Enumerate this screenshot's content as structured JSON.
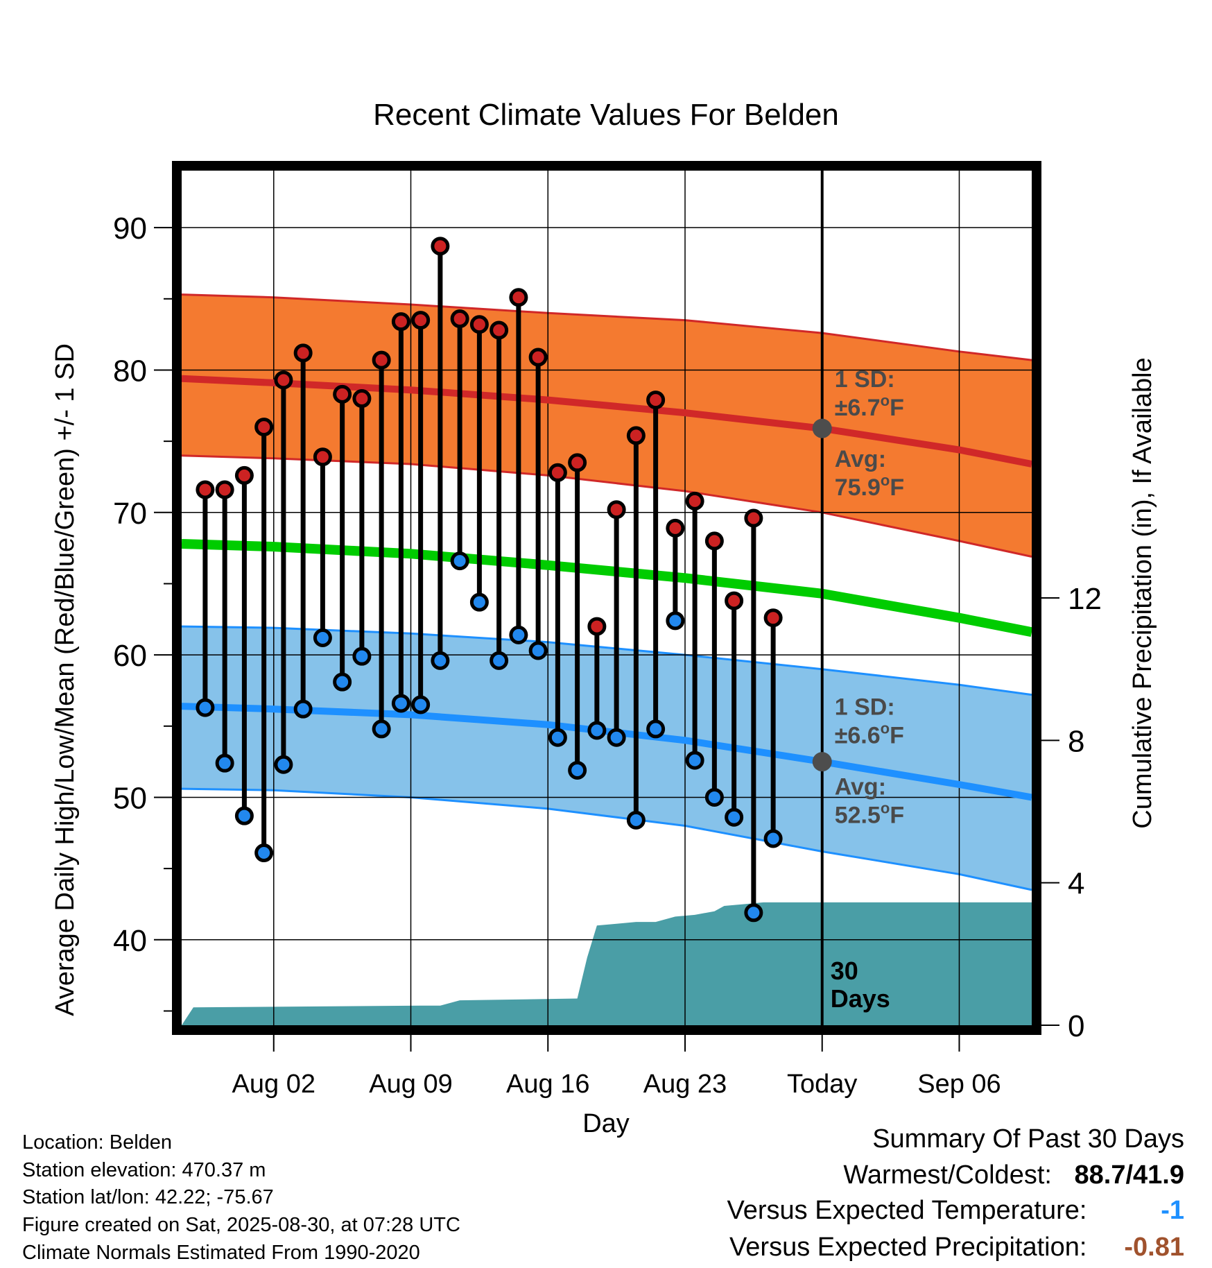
{
  "chart_data": {
    "type": "line",
    "title": "Recent Climate Values For Belden",
    "xlabel": "Day",
    "ylabel": "Average Daily High/Low/Mean (Red/Blue/Green) +/- 1 SD",
    "y2label": "Cumulative Precipitation (in), If Available",
    "ylim": [
      34,
      94
    ],
    "y2lim": [
      0,
      24
    ],
    "xlim": [
      -2.7,
      40.7
    ],
    "x_ticks": [
      {
        "day": 2,
        "label": "Aug 02"
      },
      {
        "day": 9,
        "label": "Aug 09"
      },
      {
        "day": 16,
        "label": "Aug 16"
      },
      {
        "day": 23,
        "label": "Aug 23"
      },
      {
        "day": 30,
        "label": "Today"
      },
      {
        "day": 37,
        "label": "Sep 06"
      }
    ],
    "y_ticks": [
      40,
      50,
      60,
      70,
      80,
      90
    ],
    "y2_ticks": [
      0,
      4,
      8,
      12
    ],
    "grid": true,
    "today_day": 30,
    "today_label_1": "30",
    "today_label_2": "Days",
    "normals": {
      "days": [
        -2.7,
        2,
        9,
        16,
        23,
        30,
        37,
        40.7
      ],
      "high_avg": [
        79.4,
        79.1,
        78.6,
        77.9,
        77.0,
        75.9,
        74.4,
        73.4
      ],
      "high_sd_upper": [
        85.3,
        85.1,
        84.6,
        84.0,
        83.5,
        82.6,
        81.3,
        80.7
      ],
      "high_sd_lower": [
        74.0,
        73.8,
        73.4,
        72.6,
        71.5,
        70.0,
        68.0,
        66.9
      ],
      "mean": [
        67.8,
        67.6,
        67.1,
        66.3,
        65.4,
        64.3,
        62.6,
        61.6
      ],
      "low_avg": [
        56.4,
        56.2,
        55.8,
        55.1,
        54.0,
        52.5,
        50.9,
        50.0
      ],
      "low_sd_upper": [
        62.0,
        61.9,
        61.5,
        60.9,
        60.0,
        59.0,
        57.9,
        57.2
      ],
      "low_sd_lower": [
        50.6,
        50.5,
        50.0,
        49.2,
        48.0,
        46.2,
        44.6,
        43.5
      ]
    },
    "series": [
      {
        "name": "High",
        "color": "#cc2222",
        "values": [
          71.6,
          71.6,
          72.6,
          76.0,
          79.3,
          81.2,
          73.9,
          78.3,
          78.0,
          80.7,
          83.4,
          83.5,
          88.7,
          83.6,
          83.2,
          82.8,
          85.1,
          80.9,
          72.8,
          73.5,
          62.0,
          70.2,
          75.4,
          77.9,
          68.9,
          70.8,
          68.0,
          63.8,
          69.6,
          62.6
        ]
      },
      {
        "name": "Low",
        "color": "#2288ee",
        "values": [
          56.3,
          52.4,
          48.7,
          46.1,
          52.3,
          56.2,
          61.2,
          58.1,
          59.9,
          54.8,
          56.6,
          56.5,
          59.6,
          66.6,
          63.7,
          59.6,
          61.4,
          60.3,
          54.2,
          51.9,
          54.7,
          54.2,
          48.4,
          54.8,
          62.4,
          52.6,
          50.0,
          48.6,
          41.9,
          47.1
        ]
      }
    ],
    "days": [
      -1.5,
      -0.5,
      0.5,
      1.5,
      2.5,
      3.5,
      4.5,
      5.5,
      6.5,
      7.5,
      8.5,
      9.5,
      10.5,
      11.5,
      12.5,
      13.5,
      14.5,
      15.5,
      16.5,
      17.5,
      18.5,
      19.5,
      20.5,
      21.5,
      22.5,
      23.5,
      24.5,
      25.5,
      26.5,
      27.5
    ],
    "precip": {
      "days": [
        -2.7,
        -2.1,
        9.5,
        10.5,
        11.5,
        17.5,
        18.0,
        18.5,
        19.5,
        20.5,
        21.5,
        22.5,
        23.5,
        24.5,
        25.0,
        26.0,
        27.0,
        30.0,
        40.7
      ],
      "values": [
        0,
        0.5,
        0.55,
        0.55,
        0.7,
        0.75,
        1.9,
        2.8,
        2.85,
        2.9,
        2.9,
        3.05,
        3.1,
        3.2,
        3.35,
        3.4,
        3.45,
        3.45,
        3.45
      ]
    },
    "annotations": {
      "high_sd_title": "1 SD:",
      "high_sd_value": "±6.7",
      "high_sd_unit": "F",
      "high_avg_title": "Avg:",
      "high_avg_value": "75.9",
      "high_avg_unit": "F",
      "low_sd_title": "1 SD:",
      "low_sd_value": "±6.6",
      "low_sd_unit": "F",
      "low_avg_title": "Avg:",
      "low_avg_value": "52.5",
      "low_avg_unit": "F"
    },
    "colors": {
      "high_band": "#f47a30",
      "high_line": "#d02828",
      "low_band": "#86c2ea",
      "low_line": "#1e90ff",
      "band_edge_high": "#d02828",
      "band_edge_low": "#1e90ff",
      "mean_line": "#00cc00",
      "precip": "#4a9ea6",
      "annotation_text": "#4a4a4a"
    }
  },
  "metadata": {
    "location": "Location: Belden",
    "elevation": "Station elevation: 470.37 m",
    "latlon": "Station lat/lon: 42.22; -75.67",
    "created": "Figure created on Sat, 2025-08-30, at 07:28 UTC",
    "normals": "Climate Normals Estimated From 1990-2020"
  },
  "summary": {
    "title": "Summary Of Past 30 Days",
    "warmest_label": "Warmest/Coldest:",
    "warmest_value": "88.7/41.9",
    "temp_label": "Versus Expected Temperature:",
    "temp_value": "-1",
    "temp_color": "#1e90ff",
    "precip_label": "Versus Expected Precipitation:",
    "precip_value": "-0.81",
    "precip_color": "#a0522d"
  }
}
